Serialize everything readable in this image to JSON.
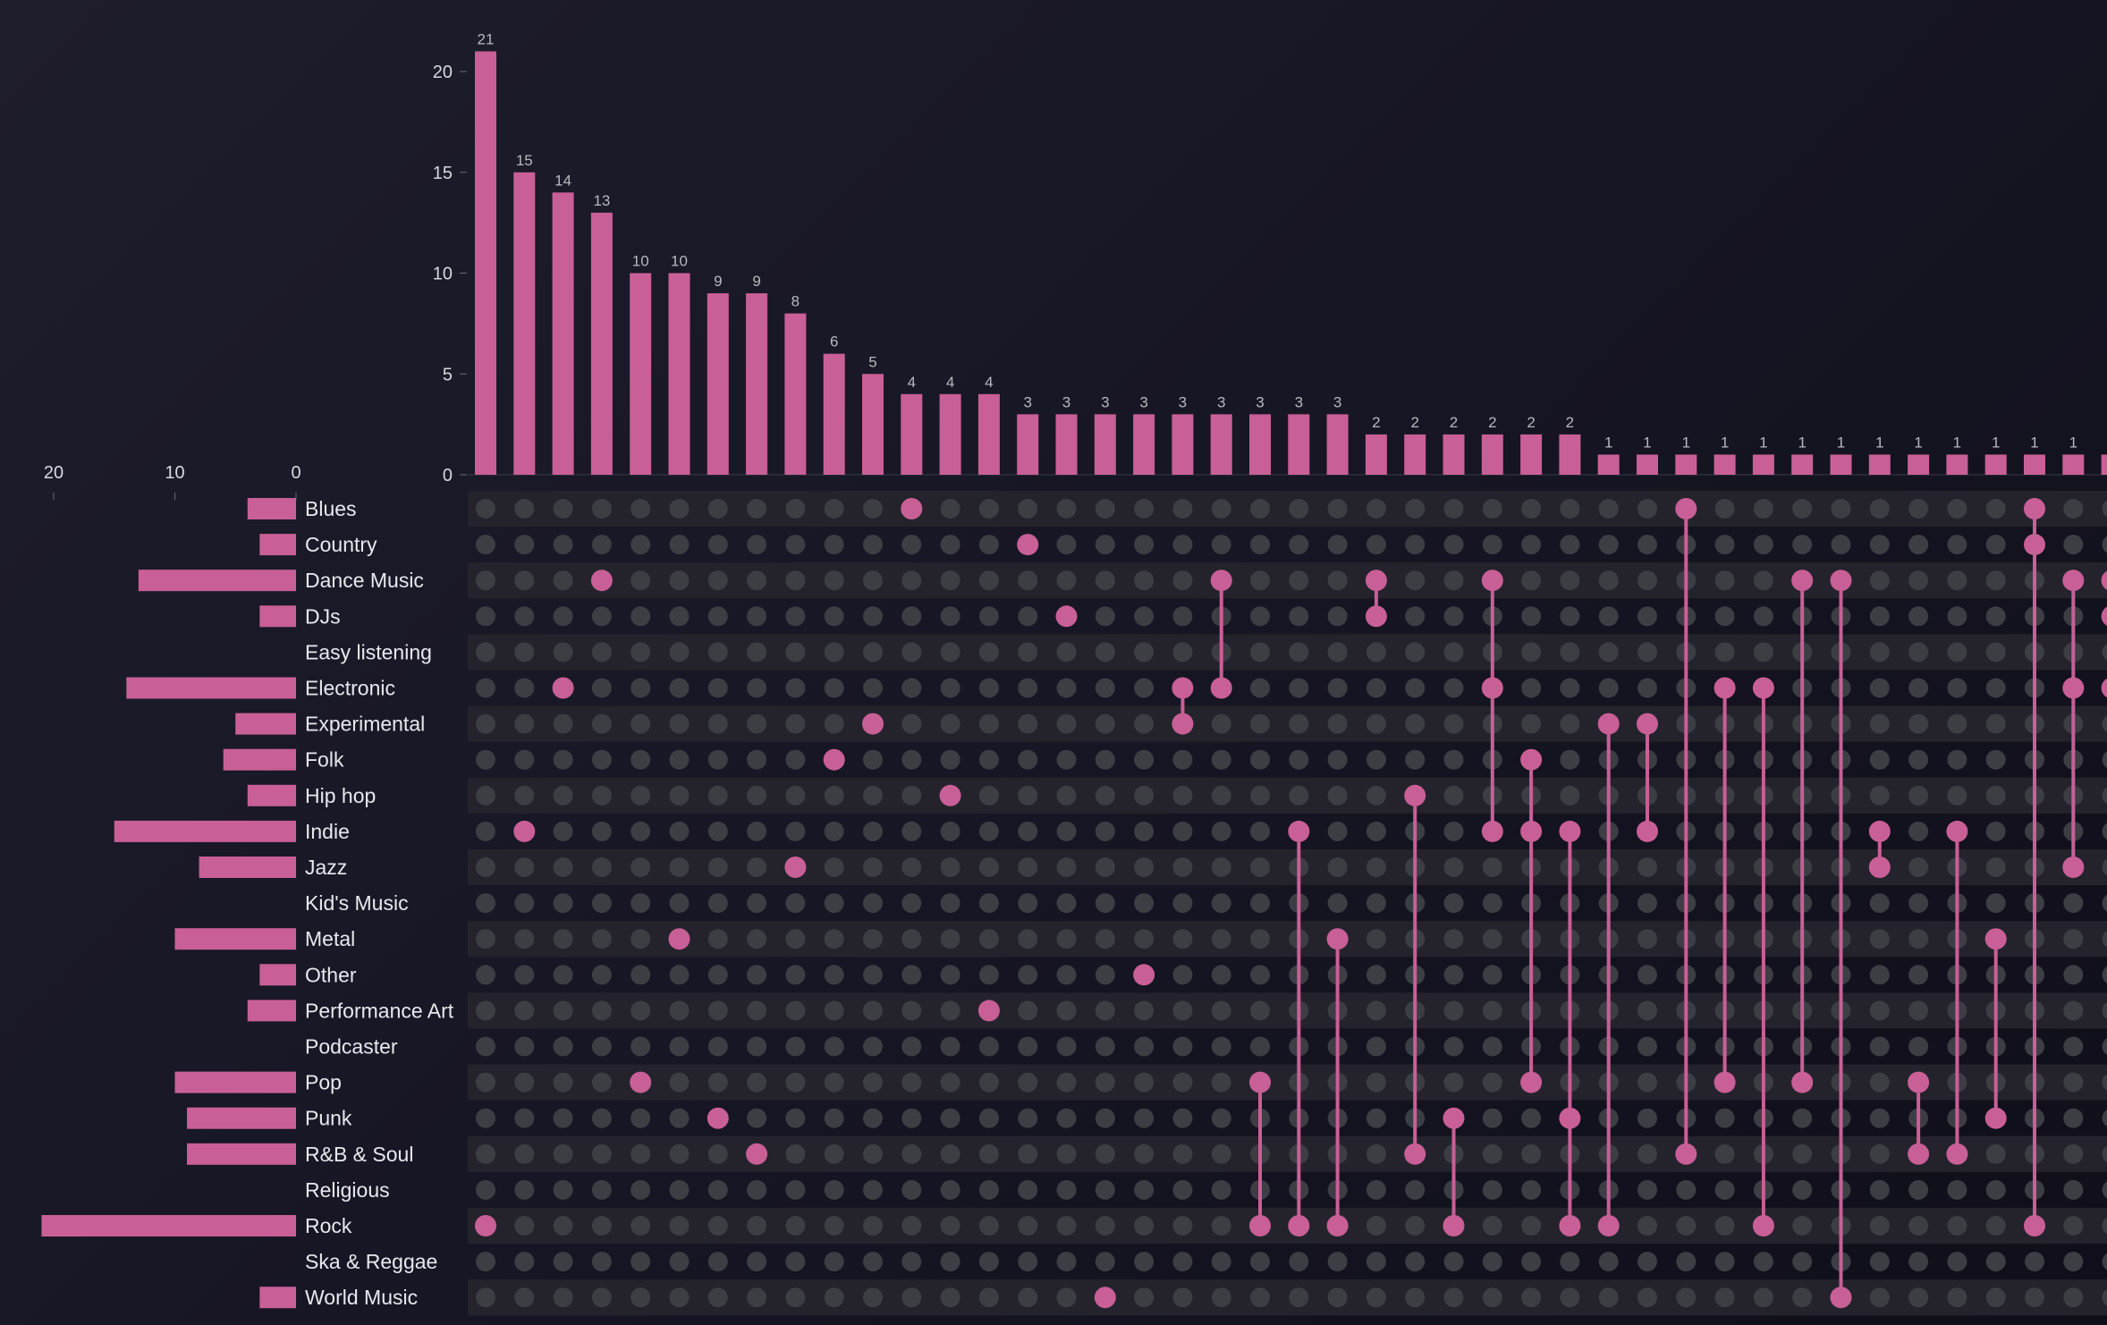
{
  "chart_data": {
    "type": "upset",
    "title": "",
    "colors": {
      "accent": "#c95f97",
      "dot_inactive": "#3d3d44",
      "row_stripe": "#24232c",
      "text": "#e8e8ee",
      "axis_text": "#d8d8de",
      "value_label": "#b8b8c0"
    },
    "sets": [
      "Blues",
      "Country",
      "Dance Music",
      "DJs",
      "Easy listening",
      "Electronic",
      "Experimental",
      "Folk",
      "Hip hop",
      "Indie",
      "Jazz",
      "Kid's Music",
      "Metal",
      "Other",
      "Performance Art",
      "Podcaster",
      "Pop",
      "Punk",
      "R&B & Soul",
      "Religious",
      "Rock",
      "Ska & Reggae",
      "World Music"
    ],
    "set_sizes": [
      4,
      3,
      13,
      3,
      0,
      14,
      5,
      6,
      4,
      15,
      8,
      0,
      10,
      3,
      4,
      0,
      10,
      9,
      9,
      0,
      21,
      0,
      3
    ],
    "set_size_axis": {
      "ticks": [
        20,
        10,
        0
      ],
      "max": 21
    },
    "intersections": [
      {
        "sets": [
          "Rock"
        ],
        "size": 21
      },
      {
        "sets": [
          "Indie"
        ],
        "size": 15
      },
      {
        "sets": [
          "Electronic"
        ],
        "size": 14
      },
      {
        "sets": [
          "Dance Music"
        ],
        "size": 13
      },
      {
        "sets": [
          "Pop"
        ],
        "size": 10
      },
      {
        "sets": [
          "Metal"
        ],
        "size": 10
      },
      {
        "sets": [
          "Punk"
        ],
        "size": 9
      },
      {
        "sets": [
          "R&B & Soul"
        ],
        "size": 9
      },
      {
        "sets": [
          "Jazz"
        ],
        "size": 8
      },
      {
        "sets": [
          "Folk"
        ],
        "size": 6
      },
      {
        "sets": [
          "Experimental"
        ],
        "size": 5
      },
      {
        "sets": [
          "Blues"
        ],
        "size": 4
      },
      {
        "sets": [
          "Hip hop"
        ],
        "size": 4
      },
      {
        "sets": [
          "Performance Art"
        ],
        "size": 4
      },
      {
        "sets": [
          "Country"
        ],
        "size": 3
      },
      {
        "sets": [
          "DJs"
        ],
        "size": 3
      },
      {
        "sets": [
          "World Music"
        ],
        "size": 3
      },
      {
        "sets": [
          "Other"
        ],
        "size": 3
      },
      {
        "sets": [
          "Electronic",
          "Experimental"
        ],
        "size": 3
      },
      {
        "sets": [
          "Dance Music",
          "Electronic"
        ],
        "size": 3
      },
      {
        "sets": [
          "Pop",
          "Rock"
        ],
        "size": 3
      },
      {
        "sets": [
          "Indie",
          "Rock"
        ],
        "size": 3
      },
      {
        "sets": [
          "Metal",
          "Rock"
        ],
        "size": 3
      },
      {
        "sets": [
          "Dance Music",
          "DJs"
        ],
        "size": 2
      },
      {
        "sets": [
          "Hip hop",
          "R&B & Soul"
        ],
        "size": 2
      },
      {
        "sets": [
          "Punk",
          "Rock"
        ],
        "size": 2
      },
      {
        "sets": [
          "Dance Music",
          "Electronic",
          "Indie"
        ],
        "size": 2
      },
      {
        "sets": [
          "Folk",
          "Indie",
          "Pop"
        ],
        "size": 2
      },
      {
        "sets": [
          "Indie",
          "Punk",
          "Rock"
        ],
        "size": 2
      },
      {
        "sets": [
          "Experimental",
          "Rock"
        ],
        "size": 1
      },
      {
        "sets": [
          "Experimental",
          "Indie"
        ],
        "size": 1
      },
      {
        "sets": [
          "Blues",
          "R&B & Soul"
        ],
        "size": 1
      },
      {
        "sets": [
          "Electronic",
          "Pop"
        ],
        "size": 1
      },
      {
        "sets": [
          "Electronic",
          "Rock"
        ],
        "size": 1
      },
      {
        "sets": [
          "Dance Music",
          "Pop"
        ],
        "size": 1
      },
      {
        "sets": [
          "Dance Music",
          "World Music"
        ],
        "size": 1
      },
      {
        "sets": [
          "Indie",
          "Jazz"
        ],
        "size": 1
      },
      {
        "sets": [
          "Pop",
          "R&B & Soul"
        ],
        "size": 1
      },
      {
        "sets": [
          "Indie",
          "R&B & Soul"
        ],
        "size": 1
      },
      {
        "sets": [
          "Metal",
          "Punk"
        ],
        "size": 1
      },
      {
        "sets": [
          "Blues",
          "Country",
          "Rock"
        ],
        "size": 1
      },
      {
        "sets": [
          "Dance Music",
          "Electronic",
          "Jazz"
        ],
        "size": 1
      },
      {
        "sets": [
          "Dance Music",
          "DJs",
          "Electronic"
        ],
        "size": 1
      }
    ],
    "count_axis": {
      "ticks": [
        0,
        5,
        10,
        15,
        20
      ],
      "max": 22
    },
    "value_labels_shown": 42
  }
}
